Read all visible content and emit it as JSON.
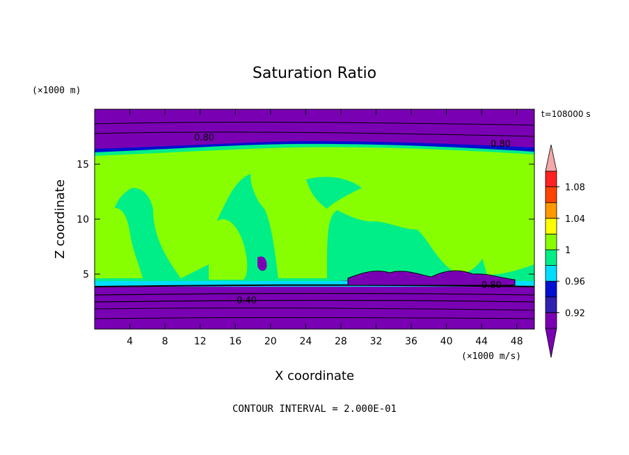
{
  "chart_data": {
    "type": "heatmap",
    "title": "Saturation Ratio",
    "xlabel": "X coordinate",
    "ylabel": "Z coordinate",
    "x_units": "(×1000 m/s)",
    "y_units": "(×1000 m)",
    "time_label": "t=108000 s",
    "footer": "CONTOUR INTERVAL = 2.000E-01",
    "x_ticks": [
      4,
      8,
      12,
      16,
      20,
      24,
      28,
      32,
      36,
      40,
      44,
      48
    ],
    "y_ticks": [
      5,
      10,
      15
    ],
    "xlim": [
      0,
      50
    ],
    "ylim": [
      0,
      20
    ],
    "colorbar": {
      "levels": [
        0.92,
        0.96,
        1,
        1.04,
        1.08
      ],
      "level_labels": [
        "0.92",
        "0.96",
        "1",
        "1.04",
        "1.08"
      ],
      "colors": [
        "#7a00b4",
        "#3020b0",
        "#0010d0",
        "#00ddff",
        "#00ee88",
        "#88ff00",
        "#ffff00",
        "#ff9900",
        "#ff4400",
        "#ff2222",
        "#f4a8a8"
      ]
    },
    "contour_labels": [
      "0.80",
      "0.80",
      "0.80",
      "0.40"
    ],
    "regions": {
      "upper_dry_layer_z": [
        16,
        20
      ],
      "cloud_layer_z": [
        4.3,
        16
      ],
      "lower_dry_layer_z": [
        0,
        4.3
      ]
    }
  }
}
